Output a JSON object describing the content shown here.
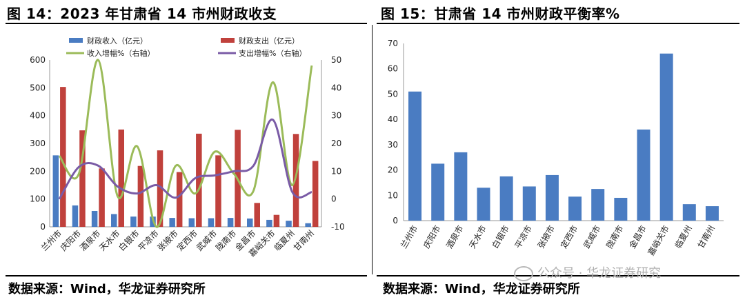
{
  "left_panel": {
    "title": "图 14：2023 年甘肃省 14 市州财政收支",
    "source": "数据来源：Wind，华龙证券研究所"
  },
  "right_panel": {
    "title": "图 15：甘肃省 14 市州财政平衡率%",
    "source": "数据来源：Wind，华龙证券研究所"
  },
  "watermark": "公众号 · 华龙证券研究",
  "colors": {
    "revenue": "#4a7cc2",
    "expenditure": "#c0413c",
    "revenue_growth": "#9bbb59",
    "expenditure_growth": "#7a5ba6",
    "balance": "#4a7cc2"
  },
  "chart_data": [
    {
      "type": "bar",
      "categories": [
        "兰州市",
        "庆阳市",
        "酒泉市",
        "天水市",
        "白银市",
        "平凉市",
        "张掖市",
        "定西市",
        "武威市",
        "陇南市",
        "金昌市",
        "嘉峪关市",
        "临夏州",
        "甘南州"
      ],
      "series": [
        {
          "name": "财政收入（亿元）",
          "type": "bar",
          "axis": "left",
          "values": [
            257,
            77,
            57,
            46,
            37,
            37,
            32,
            31,
            31,
            32,
            30,
            25,
            22,
            13
          ]
        },
        {
          "name": "财政支出（亿元）",
          "type": "bar",
          "axis": "left",
          "values": [
            503,
            347,
            210,
            350,
            219,
            275,
            197,
            335,
            257,
            349,
            86,
            43,
            334,
            237
          ]
        },
        {
          "name": "收入增幅%（右轴）",
          "type": "line",
          "axis": "right",
          "values": [
            15.5,
            9,
            50,
            1,
            19,
            -10,
            12,
            2,
            17,
            9,
            3,
            42,
            5,
            48
          ]
        },
        {
          "name": "支出增幅%（右轴）",
          "type": "line",
          "axis": "right",
          "values": [
            0,
            11.5,
            12,
            4.5,
            2,
            5,
            0.5,
            7.5,
            8.5,
            10,
            12,
            28.5,
            2.5,
            2.5
          ]
        }
      ],
      "left_axis": {
        "ticks": [
          0,
          100,
          200,
          300,
          400,
          500,
          600
        ],
        "ylim": [
          0,
          600
        ]
      },
      "right_axis": {
        "ticks": [
          -10,
          0,
          10,
          20,
          30,
          40,
          50
        ],
        "ylim": [
          -10,
          50
        ]
      },
      "legend_placement": "top"
    },
    {
      "type": "bar",
      "categories": [
        "兰州市",
        "庆阳市",
        "酒泉市",
        "天水市",
        "白银市",
        "平凉市",
        "张掖市",
        "定西市",
        "武威市",
        "陇南市",
        "金昌市",
        "嘉峪关市",
        "临夏州",
        "甘南州"
      ],
      "values": [
        51,
        22.5,
        27,
        13,
        17.5,
        13.5,
        18,
        9.5,
        12.5,
        9,
        36,
        66,
        6.5,
        5.7
      ],
      "y_ticks": [
        0,
        10,
        20,
        30,
        40,
        50,
        60,
        70
      ],
      "ylim": [
        0,
        70
      ]
    }
  ]
}
